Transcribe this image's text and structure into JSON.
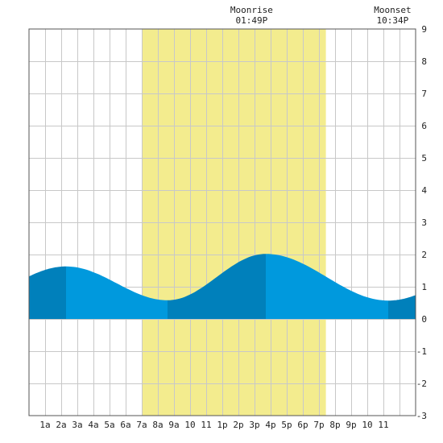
{
  "chart_data": {
    "type": "area",
    "title": "",
    "xlabel": "",
    "ylabel": "",
    "x_tick_labels": [
      "1a",
      "2a",
      "3a",
      "4a",
      "5a",
      "6a",
      "7a",
      "8a",
      "9a",
      "10",
      "11",
      "1p",
      "2p",
      "3p",
      "4p",
      "5p",
      "6p",
      "7p",
      "8p",
      "9p",
      "10",
      "11"
    ],
    "ylim": [
      -3,
      9
    ],
    "xlim_hours": [
      0,
      24
    ],
    "y_ticks": [
      -3,
      -2,
      -1,
      0,
      1,
      2,
      3,
      4,
      5,
      6,
      7,
      8,
      9
    ],
    "grid": true,
    "daylight_band_hours": [
      7.0,
      18.43
    ],
    "tide_extremes": [
      {
        "hour": 2.3,
        "height": 1.63,
        "kind": "high"
      },
      {
        "hour": 8.6,
        "height": 0.58,
        "kind": "low"
      },
      {
        "hour": 14.7,
        "height": 2.02,
        "kind": "high"
      },
      {
        "hour": 22.3,
        "height": 0.57,
        "kind": "low"
      }
    ],
    "series": [
      {
        "values": [
          [
            0,
            1.31
          ],
          [
            1,
            1.52
          ],
          [
            2,
            1.62
          ],
          [
            3,
            1.58
          ],
          [
            4,
            1.38
          ],
          [
            5,
            1.09
          ],
          [
            6,
            0.81
          ],
          [
            7,
            0.65
          ],
          [
            8,
            0.59
          ],
          [
            9,
            0.6
          ],
          [
            10,
            0.78
          ],
          [
            11,
            1.12
          ],
          [
            12,
            1.52
          ],
          [
            13,
            1.84
          ],
          [
            14,
            2.0
          ],
          [
            15,
            2.0
          ],
          [
            16,
            1.82
          ],
          [
            17,
            1.5
          ],
          [
            18,
            1.14
          ],
          [
            19,
            0.85
          ],
          [
            20,
            0.67
          ],
          [
            21,
            0.59
          ],
          [
            22,
            0.57
          ],
          [
            23,
            0.64
          ],
          [
            24,
            0.9
          ]
        ]
      }
    ],
    "annotations": [
      {
        "label": "Moonrise",
        "time": "01:49P",
        "hour": 13.82
      },
      {
        "label": "Moonset",
        "time": "10:34P",
        "hour": 22.57
      }
    ],
    "colors": {
      "daylight": "#f3ec8e",
      "tide_light": "#0099dd",
      "tide_dark": "#0080bb",
      "grid": "#c8c8c8",
      "frame": "#555555"
    }
  }
}
